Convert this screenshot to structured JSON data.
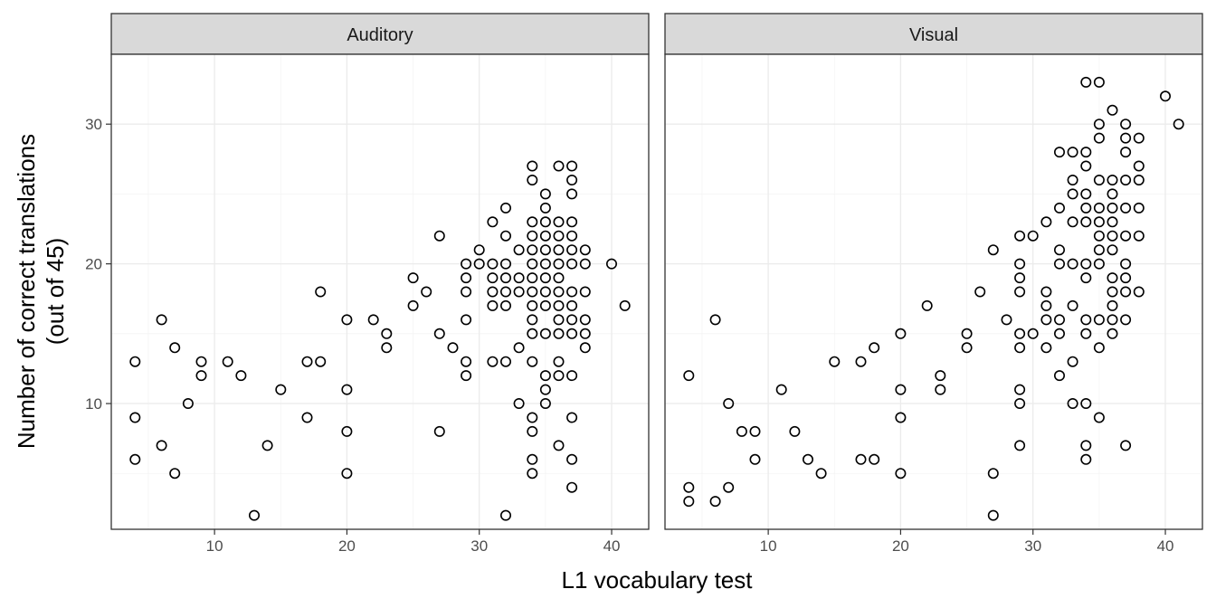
{
  "chart_data": {
    "type": "scatter",
    "xlabel": "L1 vocabulary test",
    "ylabel_lines": [
      "Number of correct translations",
      "(out of 45)"
    ],
    "x_ticks": [
      10,
      20,
      30,
      40
    ],
    "y_ticks": [
      10,
      20,
      30
    ],
    "xlim": [
      2.2,
      42.8
    ],
    "ylim": [
      1,
      35
    ],
    "grid": true,
    "marker": "open-circle",
    "panels": [
      {
        "label": "Auditory",
        "points": [
          [
            4,
            13
          ],
          [
            4,
            9
          ],
          [
            4,
            6
          ],
          [
            6,
            16
          ],
          [
            6,
            7
          ],
          [
            7,
            14
          ],
          [
            7,
            5
          ],
          [
            8,
            10
          ],
          [
            9,
            13
          ],
          [
            9,
            12
          ],
          [
            11,
            13
          ],
          [
            12,
            12
          ],
          [
            13,
            2
          ],
          [
            14,
            7
          ],
          [
            15,
            11
          ],
          [
            17,
            13
          ],
          [
            17,
            9
          ],
          [
            18,
            18
          ],
          [
            18,
            13
          ],
          [
            20,
            16
          ],
          [
            20,
            11
          ],
          [
            20,
            8
          ],
          [
            20,
            5
          ],
          [
            22,
            16
          ],
          [
            23,
            15
          ],
          [
            23,
            14
          ],
          [
            25,
            19
          ],
          [
            25,
            17
          ],
          [
            26,
            18
          ],
          [
            27,
            22
          ],
          [
            27,
            15
          ],
          [
            27,
            8
          ],
          [
            28,
            14
          ],
          [
            29,
            20
          ],
          [
            29,
            19
          ],
          [
            29,
            18
          ],
          [
            29,
            16
          ],
          [
            29,
            13
          ],
          [
            29,
            12
          ],
          [
            30,
            21
          ],
          [
            30,
            20
          ],
          [
            31,
            23
          ],
          [
            31,
            20
          ],
          [
            31,
            19
          ],
          [
            31,
            18
          ],
          [
            31,
            17
          ],
          [
            31,
            13
          ],
          [
            32,
            24
          ],
          [
            32,
            22
          ],
          [
            32,
            20
          ],
          [
            32,
            19
          ],
          [
            32,
            18
          ],
          [
            32,
            17
          ],
          [
            32,
            13
          ],
          [
            32,
            2
          ],
          [
            33,
            21
          ],
          [
            33,
            19
          ],
          [
            33,
            18
          ],
          [
            33,
            14
          ],
          [
            33,
            10
          ],
          [
            34,
            27
          ],
          [
            34,
            26
          ],
          [
            34,
            23
          ],
          [
            34,
            22
          ],
          [
            34,
            21
          ],
          [
            34,
            20
          ],
          [
            34,
            19
          ],
          [
            34,
            18
          ],
          [
            34,
            17
          ],
          [
            34,
            16
          ],
          [
            34,
            15
          ],
          [
            34,
            13
          ],
          [
            34,
            9
          ],
          [
            34,
            8
          ],
          [
            34,
            6
          ],
          [
            34,
            5
          ],
          [
            35,
            25
          ],
          [
            35,
            24
          ],
          [
            35,
            23
          ],
          [
            35,
            22
          ],
          [
            35,
            21
          ],
          [
            35,
            20
          ],
          [
            35,
            19
          ],
          [
            35,
            18
          ],
          [
            35,
            17
          ],
          [
            35,
            15
          ],
          [
            35,
            12
          ],
          [
            35,
            11
          ],
          [
            35,
            10
          ],
          [
            36,
            27
          ],
          [
            36,
            23
          ],
          [
            36,
            22
          ],
          [
            36,
            21
          ],
          [
            36,
            20
          ],
          [
            36,
            19
          ],
          [
            36,
            18
          ],
          [
            36,
            17
          ],
          [
            36,
            16
          ],
          [
            36,
            15
          ],
          [
            36,
            13
          ],
          [
            36,
            12
          ],
          [
            36,
            7
          ],
          [
            37,
            27
          ],
          [
            37,
            26
          ],
          [
            37,
            25
          ],
          [
            37,
            23
          ],
          [
            37,
            22
          ],
          [
            37,
            21
          ],
          [
            37,
            20
          ],
          [
            37,
            18
          ],
          [
            37,
            17
          ],
          [
            37,
            16
          ],
          [
            37,
            15
          ],
          [
            37,
            12
          ],
          [
            37,
            9
          ],
          [
            37,
            6
          ],
          [
            37,
            4
          ],
          [
            38,
            21
          ],
          [
            38,
            20
          ],
          [
            38,
            18
          ],
          [
            38,
            16
          ],
          [
            38,
            15
          ],
          [
            38,
            14
          ],
          [
            40,
            20
          ],
          [
            41,
            17
          ]
        ]
      },
      {
        "label": "Visual",
        "points": [
          [
            4,
            12
          ],
          [
            4,
            4
          ],
          [
            4,
            3
          ],
          [
            6,
            16
          ],
          [
            6,
            3
          ],
          [
            7,
            10
          ],
          [
            7,
            4
          ],
          [
            8,
            8
          ],
          [
            9,
            8
          ],
          [
            9,
            6
          ],
          [
            11,
            11
          ],
          [
            12,
            8
          ],
          [
            13,
            6
          ],
          [
            14,
            5
          ],
          [
            15,
            13
          ],
          [
            17,
            13
          ],
          [
            17,
            6
          ],
          [
            18,
            14
          ],
          [
            18,
            6
          ],
          [
            20,
            15
          ],
          [
            20,
            11
          ],
          [
            20,
            9
          ],
          [
            20,
            5
          ],
          [
            22,
            17
          ],
          [
            23,
            12
          ],
          [
            23,
            11
          ],
          [
            25,
            15
          ],
          [
            25,
            14
          ],
          [
            26,
            18
          ],
          [
            27,
            21
          ],
          [
            27,
            5
          ],
          [
            27,
            2
          ],
          [
            28,
            16
          ],
          [
            29,
            22
          ],
          [
            29,
            20
          ],
          [
            29,
            19
          ],
          [
            29,
            18
          ],
          [
            29,
            15
          ],
          [
            29,
            14
          ],
          [
            29,
            11
          ],
          [
            29,
            10
          ],
          [
            29,
            7
          ],
          [
            30,
            22
          ],
          [
            30,
            15
          ],
          [
            31,
            23
          ],
          [
            31,
            18
          ],
          [
            31,
            17
          ],
          [
            31,
            16
          ],
          [
            31,
            14
          ],
          [
            32,
            28
          ],
          [
            32,
            24
          ],
          [
            32,
            21
          ],
          [
            32,
            20
          ],
          [
            32,
            16
          ],
          [
            32,
            15
          ],
          [
            32,
            12
          ],
          [
            33,
            28
          ],
          [
            33,
            26
          ],
          [
            33,
            25
          ],
          [
            33,
            23
          ],
          [
            33,
            20
          ],
          [
            33,
            17
          ],
          [
            33,
            13
          ],
          [
            33,
            10
          ],
          [
            34,
            33
          ],
          [
            34,
            28
          ],
          [
            34,
            27
          ],
          [
            34,
            25
          ],
          [
            34,
            24
          ],
          [
            34,
            23
          ],
          [
            34,
            20
          ],
          [
            34,
            19
          ],
          [
            34,
            16
          ],
          [
            34,
            15
          ],
          [
            34,
            10
          ],
          [
            34,
            7
          ],
          [
            34,
            6
          ],
          [
            35,
            33
          ],
          [
            35,
            30
          ],
          [
            35,
            29
          ],
          [
            35,
            26
          ],
          [
            35,
            24
          ],
          [
            35,
            23
          ],
          [
            35,
            22
          ],
          [
            35,
            21
          ],
          [
            35,
            20
          ],
          [
            35,
            16
          ],
          [
            35,
            14
          ],
          [
            35,
            9
          ],
          [
            36,
            31
          ],
          [
            36,
            26
          ],
          [
            36,
            25
          ],
          [
            36,
            24
          ],
          [
            36,
            23
          ],
          [
            36,
            22
          ],
          [
            36,
            21
          ],
          [
            36,
            19
          ],
          [
            36,
            18
          ],
          [
            36,
            17
          ],
          [
            36,
            16
          ],
          [
            36,
            15
          ],
          [
            37,
            30
          ],
          [
            37,
            29
          ],
          [
            37,
            28
          ],
          [
            37,
            26
          ],
          [
            37,
            24
          ],
          [
            37,
            22
          ],
          [
            37,
            20
          ],
          [
            37,
            19
          ],
          [
            37,
            18
          ],
          [
            37,
            16
          ],
          [
            37,
            7
          ],
          [
            38,
            29
          ],
          [
            38,
            27
          ],
          [
            38,
            26
          ],
          [
            38,
            24
          ],
          [
            38,
            22
          ],
          [
            38,
            18
          ],
          [
            40,
            32
          ],
          [
            41,
            30
          ]
        ]
      }
    ]
  }
}
